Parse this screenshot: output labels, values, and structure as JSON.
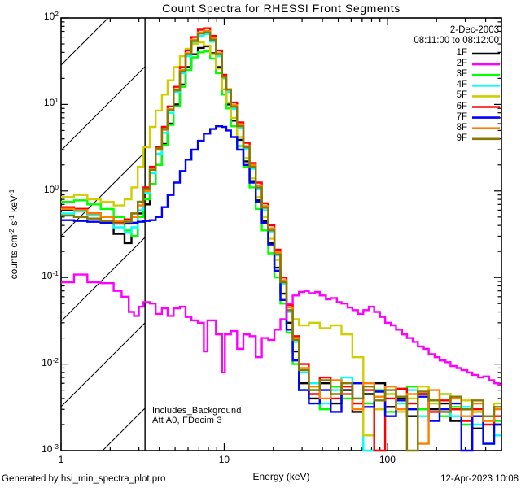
{
  "title": "Count Spectra for RHESSI Front Segments",
  "observation": {
    "date": "2-Dec-2003",
    "time_range": "08:11:00 to 08:12:00"
  },
  "annotations": {
    "line1": "Includes_Background",
    "line2": "Att A0, FDecim 3"
  },
  "footer": {
    "generated_by": "Generated by hsi_min_spectra_plot.pro",
    "timestamp": "12-Apr-2023 10:08"
  },
  "chart_data": {
    "type": "line",
    "subtype": "histogram-step-loglog",
    "title": "Count Spectra for RHESSI Front Segments",
    "xlabel": "Energy (keV)",
    "ylabel_parts": [
      [
        "t",
        "counts cm"
      ],
      [
        "sup",
        "-2"
      ],
      [
        "t",
        " s"
      ],
      [
        "sup",
        "-1"
      ],
      [
        "t",
        " keV"
      ],
      [
        "sup",
        "-1"
      ]
    ],
    "x_scale": "log",
    "y_scale": "log",
    "xlim": [
      1,
      500
    ],
    "ylim": [
      0.001,
      100
    ],
    "x_major_ticks": [
      1,
      10,
      100
    ],
    "y_major_tick_exponents": [
      2,
      1,
      0,
      -1,
      -2,
      -3
    ],
    "grid": false,
    "legend_position": "upper-right",
    "shaded_low_energy_region": {
      "x_min": 1,
      "x_max": 3.27,
      "style": "diagonal-hatch"
    },
    "energy_grid_keV": [
      1.0,
      1.2,
      1.45,
      1.75,
      2.1,
      2.45,
      2.7,
      2.95,
      3.2,
      3.5,
      3.8,
      4.15,
      4.5,
      4.9,
      5.35,
      5.8,
      6.3,
      6.9,
      7.5,
      8.2,
      8.9,
      9.7,
      10.3,
      11,
      12,
      13.1,
      14.3,
      15.6,
      17,
      18.6,
      20.3,
      22.1,
      24.1,
      26.3,
      28.7,
      33,
      38.5,
      44.9,
      52.3,
      61,
      71.2,
      83,
      96.8,
      112.9,
      131.7,
      153.6,
      179.1,
      208.9,
      243.7,
      284.2,
      331.5,
      386.6,
      450.9
    ],
    "series": [
      {
        "name": "1F",
        "color": "#000000",
        "values": [
          0.6,
          0.62,
          0.55,
          0.45,
          0.32,
          0.25,
          0.3,
          0.55,
          0.7,
          1.2,
          2.0,
          3.5,
          6.0,
          10,
          17,
          27,
          38,
          45,
          47,
          39,
          27,
          15,
          10,
          6.5,
          3.9,
          2.2,
          1.3,
          0.78,
          0.45,
          0.25,
          0.13,
          0.065,
          0.03,
          0.014,
          0.006,
          0.004,
          0.006,
          0.0035,
          0.005,
          0.0028,
          0.0045,
          0.006,
          0.0032,
          0.004,
          0.0025,
          0.0045,
          0.003,
          0.0035,
          0.0022,
          0.003,
          0.0018,
          0.0025,
          0.002
        ]
      },
      {
        "name": "2F",
        "color": "#FF00FF",
        "points": [
          [
            1.0,
            0.088
          ],
          [
            1.2,
            0.108
          ],
          [
            1.45,
            0.088
          ],
          [
            1.75,
            0.086
          ],
          [
            2.1,
            0.07
          ],
          [
            2.35,
            0.06
          ],
          [
            2.6,
            0.04
          ],
          [
            2.8,
            0.036
          ],
          [
            3.0,
            0.046
          ],
          [
            3.2,
            0.052
          ],
          [
            3.5,
            0.05
          ],
          [
            3.8,
            0.038
          ],
          [
            4.15,
            0.044
          ],
          [
            4.5,
            0.036
          ],
          [
            4.9,
            0.044
          ],
          [
            5.35,
            0.046
          ],
          [
            5.8,
            0.035
          ],
          [
            6.3,
            0.032
          ],
          [
            6.9,
            0.03
          ],
          [
            7.5,
            0.014
          ],
          [
            7.9,
            0.032
          ],
          [
            8.9,
            0.022
          ],
          [
            9.7,
            0.008
          ],
          [
            10.1,
            0.022
          ],
          [
            11,
            0.024
          ],
          [
            12,
            0.015
          ],
          [
            13.1,
            0.022
          ],
          [
            14.3,
            0.021
          ],
          [
            15.6,
            0.012
          ],
          [
            17,
            0.02
          ],
          [
            18.6,
            0.019
          ],
          [
            20.3,
            0.025
          ],
          [
            22.1,
            0.033
          ],
          [
            24.1,
            0.05
          ],
          [
            26.3,
            0.062
          ],
          [
            28.7,
            0.068
          ],
          [
            31,
            0.07
          ],
          [
            33,
            0.066
          ],
          [
            36,
            0.068
          ],
          [
            38.5,
            0.062
          ],
          [
            42,
            0.056
          ],
          [
            44.9,
            0.058
          ],
          [
            49,
            0.052
          ],
          [
            52.3,
            0.05
          ],
          [
            57,
            0.045
          ],
          [
            61,
            0.042
          ],
          [
            66,
            0.038
          ],
          [
            71.2,
            0.042
          ],
          [
            77,
            0.046
          ],
          [
            83,
            0.04
          ],
          [
            90,
            0.035
          ],
          [
            96.8,
            0.03
          ],
          [
            105,
            0.028
          ],
          [
            112.9,
            0.025
          ],
          [
            123,
            0.022
          ],
          [
            131.7,
            0.02
          ],
          [
            143,
            0.018
          ],
          [
            153.6,
            0.016
          ],
          [
            167,
            0.015
          ],
          [
            179.1,
            0.013
          ],
          [
            195,
            0.012
          ],
          [
            208.9,
            0.011
          ],
          [
            227,
            0.0105
          ],
          [
            243.7,
            0.0095
          ],
          [
            265,
            0.009
          ],
          [
            284.2,
            0.0085
          ],
          [
            309,
            0.008
          ],
          [
            331.5,
            0.0075
          ],
          [
            360,
            0.007
          ],
          [
            386.6,
            0.0072
          ],
          [
            420,
            0.0065
          ],
          [
            450.9,
            0.006
          ],
          [
            480,
            0.0058
          ]
        ]
      },
      {
        "name": "3F",
        "color": "#00FF00",
        "values": [
          0.75,
          0.78,
          0.7,
          0.62,
          0.5,
          0.35,
          0.3,
          0.5,
          0.8,
          1.2,
          2.0,
          3.4,
          5.8,
          9.5,
          16,
          25,
          35,
          40,
          41,
          34,
          23,
          13,
          9,
          5.6,
          3.3,
          1.9,
          1.1,
          0.62,
          0.35,
          0.19,
          0.1,
          0.05,
          0.023,
          0.01,
          0.005,
          0.005,
          0.003,
          0.0055,
          0.004,
          0.006,
          0.0035,
          0.005,
          0.0028,
          0.0042,
          0.0055,
          0.003,
          0.0038,
          0.0025,
          0.0032,
          0.002,
          0.0028,
          0.0012,
          0.0022
        ]
      },
      {
        "name": "4F",
        "color": "#00FFFF",
        "values": [
          0.55,
          0.58,
          0.52,
          0.45,
          0.38,
          0.33,
          0.38,
          0.6,
          0.95,
          1.6,
          2.7,
          4.7,
          8.0,
          14,
          23,
          36,
          51,
          62,
          65,
          53,
          36,
          20,
          14,
          8.9,
          5.3,
          3.1,
          1.8,
          1.06,
          0.6,
          0.34,
          0.18,
          0.085,
          0.04,
          0.018,
          0.008,
          0.006,
          0.0035,
          0.005,
          0.007,
          0.004,
          0.001,
          0.003,
          0.0045,
          0.0035,
          0.005,
          0.0025,
          0.0035,
          0.0045,
          0.0025,
          0.0032,
          0.002,
          0.0025,
          0.0015
        ]
      },
      {
        "name": "5F",
        "color": "#CFCF00",
        "values": [
          0.85,
          0.9,
          0.8,
          0.75,
          0.68,
          0.8,
          1.1,
          1.9,
          3.2,
          5.5,
          8.5,
          13,
          19,
          27,
          36,
          44,
          50,
          52,
          48,
          38,
          26,
          15,
          10.5,
          7.0,
          4.2,
          2.4,
          1.4,
          0.85,
          0.5,
          0.28,
          0.16,
          0.09,
          0.05,
          0.033,
          0.028,
          0.03,
          0.026,
          0.028,
          0.022,
          0.012,
          0.0015,
          0.003,
          0.0045,
          0.0028,
          0.004,
          0.0055,
          0.0035,
          0.0045,
          0.003,
          0.0038,
          0.0028,
          0.0022,
          0.0035
        ]
      },
      {
        "name": "6F",
        "color": "#FF0000",
        "values": [
          0.65,
          0.62,
          0.55,
          0.5,
          0.44,
          0.47,
          0.55,
          0.75,
          1.1,
          1.9,
          3.2,
          5.5,
          9.5,
          16,
          27,
          42,
          60,
          73,
          76,
          62,
          42,
          22,
          15,
          10.5,
          6.2,
          3.6,
          2.1,
          1.25,
          0.72,
          0.4,
          0.21,
          0.1,
          0.048,
          0.021,
          0.01,
          0.0045,
          0.007,
          0.004,
          0.0055,
          0.0035,
          0.005,
          0.001,
          0.004,
          0.0052,
          0.0035,
          0.0045,
          0.0028,
          0.0038,
          0.003,
          0.0022,
          0.003,
          0.002,
          0.0025
        ]
      },
      {
        "name": "7F",
        "color": "#0000FF",
        "values": [
          0.46,
          0.45,
          0.44,
          0.43,
          0.42,
          0.42,
          0.43,
          0.44,
          0.45,
          0.46,
          0.5,
          0.65,
          0.9,
          1.25,
          1.7,
          2.3,
          3.0,
          3.8,
          4.6,
          5.2,
          5.6,
          5.5,
          5.0,
          4.2,
          3.0,
          2.0,
          1.25,
          0.75,
          0.43,
          0.24,
          0.12,
          0.055,
          0.025,
          0.011,
          0.005,
          0.0035,
          0.005,
          0.0028,
          0.0045,
          0.006,
          0.0032,
          0.0048,
          0.0025,
          0.0038,
          0.003,
          0.0042,
          0.0022,
          0.003,
          0.0035,
          0.001,
          0.0025,
          0.0012,
          0.002
        ]
      },
      {
        "name": "8F",
        "color": "#FF8000",
        "values": [
          0.62,
          0.6,
          0.55,
          0.5,
          0.45,
          0.45,
          0.5,
          0.68,
          1.0,
          1.8,
          3.0,
          5.1,
          8.8,
          15,
          25,
          39,
          56,
          68,
          71,
          58,
          39,
          20.5,
          15,
          9.8,
          5.8,
          3.3,
          2.0,
          1.16,
          0.67,
          0.37,
          0.195,
          0.093,
          0.045,
          0.02,
          0.009,
          0.0055,
          0.004,
          0.0065,
          0.0045,
          0.003,
          0.006,
          0.0042,
          0.0055,
          0.003,
          0.0045,
          0.0012,
          0.005,
          0.0028,
          0.004,
          0.0025,
          0.0035,
          0.0022,
          0.003
        ]
      },
      {
        "name": "9F",
        "color": "#857B00",
        "values": [
          0.52,
          0.5,
          0.48,
          0.45,
          0.42,
          0.44,
          0.55,
          0.75,
          1.05,
          1.75,
          3.1,
          5.2,
          8.6,
          14.5,
          24,
          38,
          54,
          66,
          68,
          56,
          38,
          21,
          14.8,
          9.4,
          5.6,
          3.2,
          1.9,
          1.1,
          0.64,
          0.35,
          0.185,
          0.088,
          0.042,
          0.019,
          0.0085,
          0.005,
          0.0065,
          0.0045,
          0.006,
          0.004,
          0.0055,
          0.0038,
          0.005,
          0.0042,
          0.001,
          0.0048,
          0.0038,
          0.0028,
          0.0042,
          0.003,
          0.0038,
          0.0025,
          0.0032
        ]
      }
    ]
  }
}
